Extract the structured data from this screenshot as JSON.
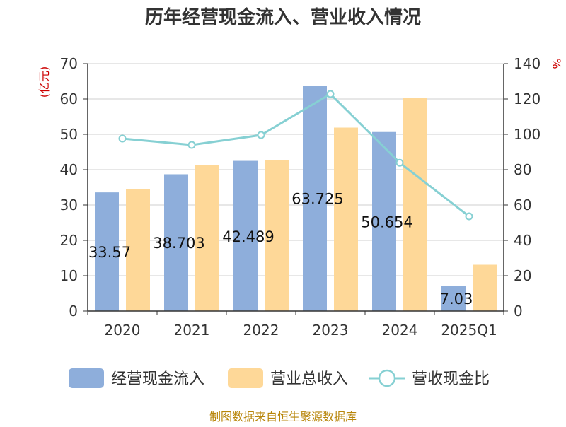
{
  "chart_data": {
    "type": "bar",
    "title": "历年经营现金流入、营业收入情况",
    "categories": [
      "2020",
      "2021",
      "2022",
      "2023",
      "2024",
      "2025Q1"
    ],
    "y_left": {
      "unit": "(亿元)",
      "ylim": [
        0,
        70
      ],
      "ticks": [
        0,
        10,
        20,
        30,
        40,
        50,
        60,
        70
      ]
    },
    "y_right": {
      "unit": "%",
      "ylim": [
        0,
        140
      ],
      "ticks": [
        0,
        20,
        40,
        60,
        80,
        100,
        120,
        140
      ]
    },
    "series": [
      {
        "name": "经营现金流入",
        "type": "bar",
        "axis": "left",
        "color": "#8eaedb",
        "values": [
          33.57,
          38.703,
          42.489,
          63.725,
          50.654,
          7.03
        ],
        "labels": [
          "33.57",
          "38.703",
          "42.489",
          "63.725",
          "50.654",
          "7.03"
        ]
      },
      {
        "name": "营业总收入",
        "type": "bar",
        "axis": "left",
        "color": "#fed898",
        "values": [
          34.4,
          41.2,
          42.7,
          51.9,
          60.4,
          13.1
        ]
      },
      {
        "name": "营收现金比",
        "type": "line",
        "axis": "right",
        "color": "#86d0d3",
        "values": [
          97.6,
          94.0,
          99.6,
          122.8,
          83.9,
          53.6
        ]
      }
    ],
    "grid": true,
    "legend_position": "bottom"
  },
  "footer": {
    "source": "制图数据来自恒生聚源数据库"
  }
}
